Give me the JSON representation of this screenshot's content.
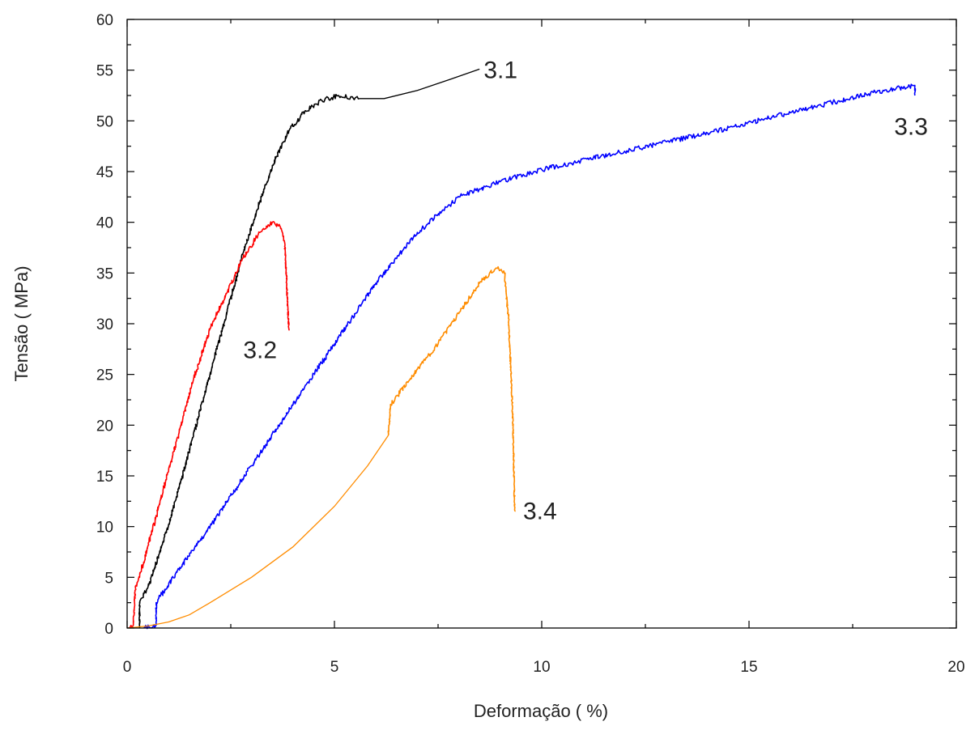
{
  "chart_data": {
    "type": "line",
    "xlabel": "Deformação ( %)",
    "ylabel": "Tensão ( MPa)",
    "xlim": [
      0,
      20
    ],
    "ylim": [
      0,
      60
    ],
    "x_ticks": [
      "0",
      "5",
      "10",
      "15",
      "20"
    ],
    "y_ticks": [
      "0",
      "5",
      "10",
      "15",
      "20",
      "25",
      "30",
      "35",
      "40",
      "45",
      "50",
      "55",
      "60"
    ],
    "grid": false,
    "legend": "none",
    "series": [
      {
        "name": "3.1",
        "color": "#000000",
        "noisy": true,
        "points": [
          [
            0.3,
            0
          ],
          [
            0.3,
            2.5
          ],
          [
            0.5,
            4
          ],
          [
            0.8,
            7.5
          ],
          [
            1.2,
            13
          ],
          [
            1.6,
            19
          ],
          [
            2.0,
            25
          ],
          [
            2.4,
            31
          ],
          [
            2.8,
            37
          ],
          [
            3.2,
            42
          ],
          [
            3.6,
            46.5
          ],
          [
            3.9,
            49
          ],
          [
            4.3,
            51
          ],
          [
            4.7,
            52
          ],
          [
            5.1,
            52.5
          ],
          [
            5.6,
            52.2
          ]
        ],
        "tail": [
          [
            5.6,
            52.2
          ],
          [
            6.2,
            52.2
          ],
          [
            7.0,
            53
          ],
          [
            7.8,
            54.1
          ],
          [
            8.5,
            55.1
          ]
        ]
      },
      {
        "name": "3.2",
        "color": "#ff0000",
        "noisy": true,
        "points": [
          [
            0.05,
            0
          ],
          [
            0.15,
            0.3
          ],
          [
            0.2,
            4
          ],
          [
            0.4,
            6.5
          ],
          [
            0.7,
            11
          ],
          [
            1.0,
            15.5
          ],
          [
            1.3,
            20
          ],
          [
            1.6,
            24.5
          ],
          [
            2.0,
            29.5
          ],
          [
            2.4,
            33
          ],
          [
            2.8,
            36.5
          ],
          [
            3.2,
            39
          ],
          [
            3.5,
            40
          ],
          [
            3.7,
            39.5
          ],
          [
            3.8,
            38
          ],
          [
            3.85,
            34
          ],
          [
            3.9,
            29.5
          ]
        ]
      },
      {
        "name": "3.3",
        "color": "#0000ff",
        "noisy": true,
        "points": [
          [
            0.4,
            0
          ],
          [
            0.7,
            0.3
          ],
          [
            0.7,
            2.5
          ],
          [
            1.2,
            5.5
          ],
          [
            2.0,
            10
          ],
          [
            3.0,
            16
          ],
          [
            4.0,
            22
          ],
          [
            5.0,
            28
          ],
          [
            6.0,
            34
          ],
          [
            7.0,
            39
          ],
          [
            8.0,
            42.5
          ],
          [
            9.0,
            44
          ],
          [
            10.0,
            45.2
          ],
          [
            12.0,
            47
          ],
          [
            14.0,
            48.8
          ],
          [
            16.0,
            50.8
          ],
          [
            18.0,
            52.8
          ],
          [
            19.0,
            53.5
          ],
          [
            19.0,
            52.5
          ]
        ]
      },
      {
        "name": "3.4",
        "color": "#ff8c00",
        "noisy": true,
        "lead": [
          [
            0,
            0
          ],
          [
            0.5,
            0.2
          ],
          [
            1.0,
            0.6
          ],
          [
            1.5,
            1.3
          ],
          [
            2.0,
            2.5
          ],
          [
            3.0,
            5
          ],
          [
            4.0,
            8
          ],
          [
            5.0,
            12
          ],
          [
            5.8,
            16
          ],
          [
            6.3,
            19
          ]
        ],
        "points": [
          [
            6.3,
            19
          ],
          [
            6.35,
            22
          ],
          [
            7.0,
            25.5
          ],
          [
            7.5,
            28
          ],
          [
            8.0,
            31
          ],
          [
            8.5,
            34
          ],
          [
            8.9,
            35.5
          ],
          [
            9.1,
            35
          ],
          [
            9.2,
            30.5
          ],
          [
            9.3,
            21
          ],
          [
            9.35,
            11.5
          ]
        ]
      }
    ],
    "annotations": [
      {
        "text": "3.1",
        "x": 8.6,
        "y": 55.1
      },
      {
        "text": "3.2",
        "x": 2.8,
        "y": 27.5
      },
      {
        "text": "3.3",
        "x": 18.5,
        "y": 49.5
      },
      {
        "text": "3.4",
        "x": 9.55,
        "y": 11.6
      }
    ]
  }
}
